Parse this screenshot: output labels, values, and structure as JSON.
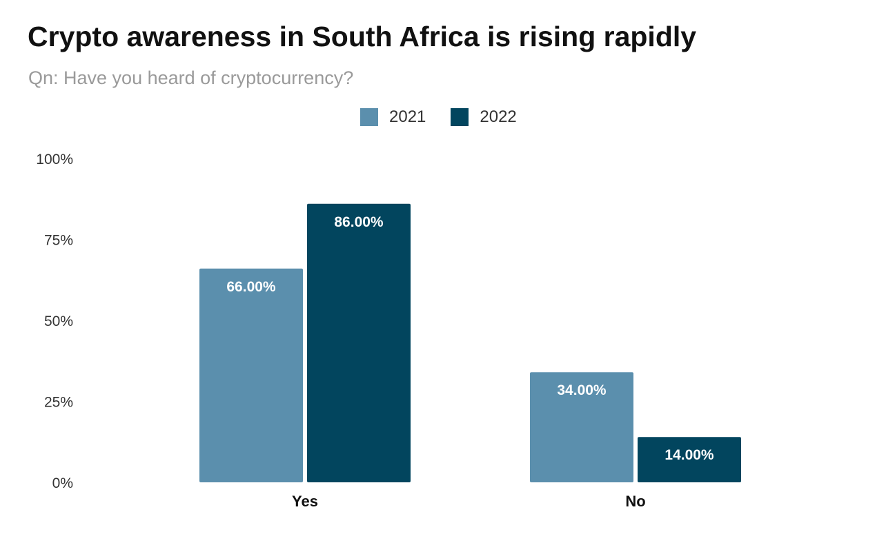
{
  "chart_data": {
    "type": "bar",
    "title": "Crypto awareness in South Africa is rising rapidly",
    "subtitle": "Qn: Have you heard of cryptocurrency?",
    "categories": [
      "Yes",
      "No"
    ],
    "series": [
      {
        "name": "2021",
        "color": "#5b8fad",
        "values": [
          66.0,
          34.0
        ],
        "labels": [
          "66.00%",
          "34.00%"
        ]
      },
      {
        "name": "2022",
        "color": "#02455e",
        "values": [
          86.0,
          14.0
        ],
        "labels": [
          "86.00%",
          "14.00%"
        ]
      }
    ],
    "ylim": [
      0,
      100
    ],
    "yticks": [
      0,
      25,
      50,
      75,
      100
    ],
    "ytick_labels": [
      "0%",
      "25%",
      "50%",
      "75%",
      "100%"
    ],
    "xlabel": "",
    "ylabel": "",
    "legend_position": "top-center",
    "grid": false
  }
}
